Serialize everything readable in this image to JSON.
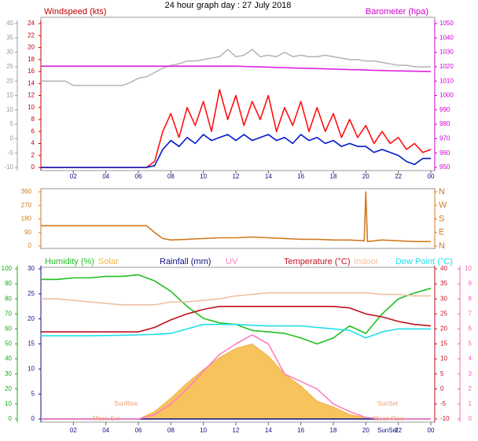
{
  "chart_data": [
    {
      "type": "line",
      "title": "24 hour graph day : 27 July 2018",
      "y_label": "Windspeed (kts)",
      "y2_label": "Barometer (hpa)",
      "x": [
        0,
        0.5,
        1,
        1.5,
        2,
        2.5,
        3,
        3.5,
        4,
        4.5,
        5,
        5.5,
        6,
        6.5,
        7,
        7.5,
        8,
        8.5,
        9,
        9.5,
        10,
        10.5,
        11,
        11.5,
        12,
        12.5,
        13,
        13.5,
        14,
        14.5,
        15,
        15.5,
        16,
        16.5,
        17,
        17.5,
        18,
        18.5,
        19,
        19.5,
        20,
        20.5,
        21,
        21.5,
        22,
        22.5,
        23,
        23.5,
        24
      ],
      "xlim": [
        0,
        24
      ],
      "xticks": [
        {
          "value": 2,
          "label": "02"
        },
        {
          "value": 4,
          "label": "04"
        },
        {
          "value": 6,
          "label": "06"
        },
        {
          "value": 8,
          "label": "08"
        },
        10,
        12,
        14,
        16,
        18,
        20,
        22,
        {
          "value": 24,
          "label": "00"
        }
      ],
      "ylim": [
        0,
        24
      ],
      "yticks": [
        0,
        2,
        4,
        6,
        8,
        10,
        12,
        14,
        16,
        18,
        20,
        22,
        24
      ],
      "y2lim": [
        950,
        1050
      ],
      "y2ticks": [
        950,
        960,
        970,
        980,
        990,
        1000,
        1010,
        1020,
        1030,
        1040,
        1050
      ],
      "y3lim": [
        -10,
        40
      ],
      "y3ticks": [
        -10,
        -5,
        0,
        5,
        10,
        15,
        20,
        25,
        30,
        35,
        40
      ],
      "series": [
        {
          "color": "#b8b8b8",
          "axis": "y3",
          "values": [
            20,
            20,
            20,
            20,
            18.5,
            18.5,
            18.5,
            18.5,
            18.5,
            18.5,
            18.5,
            19.5,
            21,
            21.5,
            23,
            24.5,
            25.5,
            26,
            27,
            27,
            27.5,
            28,
            28.5,
            31,
            28.5,
            29,
            31,
            28.5,
            29,
            28.5,
            30,
            28.5,
            29,
            28.5,
            28.5,
            29,
            28.5,
            28,
            27.5,
            27.5,
            27,
            27,
            26.5,
            26,
            25.5,
            25.5,
            25,
            25,
            25
          ]
        },
        {
          "color": "#e020e0",
          "axis": "y2",
          "values": [
            1020.4,
            1020.4,
            1020.4,
            1020.4,
            1020.4,
            1020.4,
            1020.4,
            1020.4,
            1020.4,
            1020.4,
            1020.4,
            1020.4,
            1020.4,
            1020.4,
            1020.4,
            1020.4,
            1020.4,
            1020.4,
            1020.4,
            1020.4,
            1020.4,
            1020.4,
            1020.4,
            1020.4,
            1020.4,
            1020.2,
            1020,
            1019.9,
            1019.7,
            1019.5,
            1019.4,
            1019.2,
            1019,
            1018.9,
            1018.7,
            1018.5,
            1018.4,
            1018.2,
            1018,
            1017.9,
            1017.7,
            1017.5,
            1017.4,
            1017.2,
            1017.1,
            1017,
            1016.9,
            1016.8,
            1016.7
          ]
        },
        {
          "color": "#ff1010",
          "axis": "y",
          "values": [
            0,
            0,
            0,
            0,
            0,
            0,
            0,
            0,
            0,
            0,
            0,
            0,
            0,
            0,
            1,
            6,
            9,
            5,
            10,
            7,
            11,
            6,
            13,
            8,
            12,
            7,
            11,
            8,
            12,
            6,
            10,
            7,
            11,
            6,
            10,
            6,
            9,
            5,
            8,
            5,
            7,
            4,
            6,
            4,
            5,
            3,
            4,
            2.5,
            3
          ]
        },
        {
          "color": "#0018c8",
          "axis": "y",
          "values": [
            0,
            0,
            0,
            0,
            0,
            0,
            0,
            0,
            0,
            0,
            0,
            0,
            0,
            0,
            0.3,
            3,
            4.5,
            3.5,
            5,
            4,
            5.5,
            4.5,
            5,
            5.5,
            4.5,
            5.5,
            4.5,
            5,
            5.5,
            4.5,
            5,
            4,
            5.5,
            4.5,
            5,
            4,
            4.5,
            3.5,
            4,
            3.5,
            3.5,
            2.5,
            3,
            2.5,
            2,
            1,
            0.5,
            1.5,
            1.5
          ]
        }
      ]
    },
    {
      "type": "line",
      "x": [
        0,
        1,
        2,
        3,
        4,
        5,
        6,
        6.5,
        7,
        7.5,
        8,
        9,
        10,
        11,
        12,
        13,
        14,
        15,
        16,
        17,
        18,
        19,
        19.9,
        20,
        20.1,
        21,
        22,
        23,
        24
      ],
      "xlim": [
        0,
        24
      ],
      "ylim": [
        0,
        360
      ],
      "yticks": [
        0,
        90,
        180,
        270,
        360
      ],
      "y2lim": [
        0,
        360
      ],
      "y2ticks": [
        {
          "value": 0,
          "label": "N"
        },
        {
          "value": 90,
          "label": "E"
        },
        {
          "value": 180,
          "label": "S"
        },
        {
          "value": 270,
          "label": "W"
        },
        {
          "value": 360,
          "label": "N"
        }
      ],
      "series": [
        {
          "color": "#d07a20",
          "axis": "y",
          "values": [
            135,
            135,
            135,
            135,
            135,
            135,
            135,
            135,
            90,
            50,
            40,
            45,
            50,
            55,
            55,
            60,
            55,
            50,
            45,
            45,
            40,
            40,
            35,
            360,
            30,
            40,
            35,
            30,
            30
          ]
        }
      ]
    },
    {
      "type": "line",
      "x": [
        0,
        1,
        2,
        3,
        4,
        5,
        6,
        7,
        8,
        9,
        10,
        11,
        12,
        13,
        14,
        15,
        16,
        17,
        18,
        19,
        20,
        21,
        22,
        23,
        24
      ],
      "xlim": [
        0,
        24
      ],
      "xticks": [
        {
          "value": 2,
          "label": "02"
        },
        {
          "value": 4,
          "label": "04"
        },
        {
          "value": 6,
          "label": "06"
        },
        {
          "value": 8,
          "label": "08"
        },
        10,
        12,
        14,
        16,
        18,
        20,
        22,
        {
          "value": 24,
          "label": "00"
        }
      ],
      "ylim": [
        0,
        100
      ],
      "yticks": [
        0,
        10,
        20,
        30,
        40,
        50,
        60,
        70,
        80,
        90,
        100
      ],
      "y2lim": [
        0,
        30
      ],
      "y2ticks": [
        0,
        5,
        10,
        15,
        20,
        25,
        30
      ],
      "y3lim": [
        -10,
        40
      ],
      "y3ticks": [
        -10,
        -5,
        0,
        5,
        10,
        15,
        20,
        25,
        30,
        35,
        40
      ],
      "y4lim": [
        0,
        10
      ],
      "y4ticks": [
        0,
        1,
        2,
        3,
        4,
        5,
        6,
        7,
        8,
        9,
        10
      ],
      "annotations": [
        "SunRise",
        "Moon Set",
        "SunSet",
        "Moon Rise",
        "SunSet"
      ],
      "series": [
        {
          "name": "Humidity (%)",
          "color": "#20c020",
          "axis": "y",
          "values": [
            93,
            93,
            94,
            94,
            95,
            95,
            96,
            92,
            85,
            75,
            67,
            64,
            63,
            59,
            58,
            57,
            54,
            50,
            54,
            62,
            57,
            70,
            80,
            84,
            87
          ]
        },
        {
          "name": "Solar",
          "color": "#f5b840",
          "axis": "y",
          "area": true,
          "values": [
            0,
            0,
            0,
            0,
            0,
            0,
            0,
            5,
            14,
            24,
            33,
            41,
            47,
            50,
            42,
            30,
            22,
            12,
            8,
            3,
            1,
            0,
            0,
            0,
            0
          ]
        },
        {
          "name": "Rainfall (mm)",
          "color": "#101080",
          "axis": "y2",
          "values": [
            0,
            0,
            0,
            0,
            0,
            0,
            0,
            0,
            0,
            0,
            0,
            0,
            0,
            0,
            0,
            0,
            0,
            0,
            0,
            0,
            0,
            0,
            0,
            0,
            0
          ]
        },
        {
          "name": "UV",
          "color": "#ff80c0",
          "axis": "y4",
          "values": [
            0,
            0,
            0,
            0,
            0,
            0,
            0,
            0.3,
            1,
            2,
            3.2,
            4.3,
            5,
            5.6,
            5,
            3,
            2.5,
            2,
            1,
            0.5,
            0.1,
            0,
            0,
            0,
            0
          ]
        },
        {
          "name": "Temperature (°C)",
          "color": "#c01020",
          "axis": "y3",
          "values": [
            19,
            19,
            19,
            19,
            19,
            19,
            19,
            20.5,
            23,
            25,
            26.5,
            27.5,
            27.5,
            27.5,
            27.5,
            27.5,
            27.5,
            27.5,
            27.5,
            27,
            25,
            24,
            22.5,
            21.5,
            21
          ]
        },
        {
          "name": "Indoor",
          "color": "#f0c0a0",
          "axis": "y3",
          "values": [
            30,
            30,
            29.5,
            29,
            28.5,
            28,
            28,
            28,
            29,
            29,
            29.5,
            30,
            31,
            31.5,
            32,
            32,
            32,
            32,
            32,
            32,
            32,
            31.5,
            31.5,
            31,
            31
          ]
        },
        {
          "name": "Dew Point (°C)",
          "color": "#20e0e8",
          "axis": "y3",
          "values": [
            17.7,
            17.7,
            17.7,
            17.7,
            17.8,
            17.9,
            18,
            18.2,
            18.5,
            20,
            21.5,
            21.5,
            21.5,
            21.2,
            21,
            21,
            21,
            20.5,
            20,
            19.5,
            17,
            19,
            20,
            20,
            20
          ]
        }
      ]
    }
  ]
}
